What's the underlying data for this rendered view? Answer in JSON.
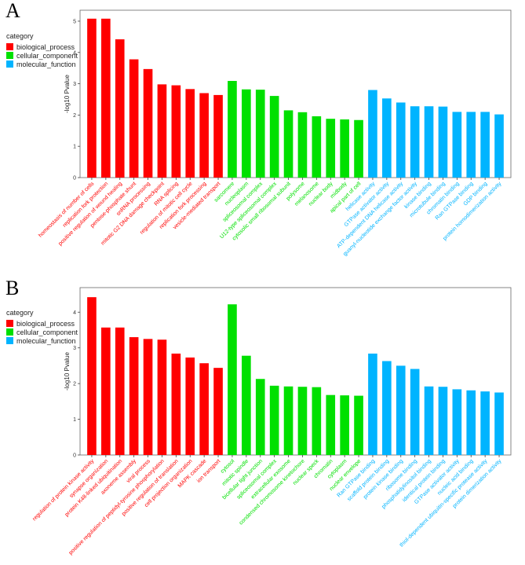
{
  "colors": {
    "biological_process": "#ff0000",
    "cellular_component": "#00e000",
    "molecular_function": "#00b4ff"
  },
  "panels": [
    {
      "letter": "A",
      "legend": {
        "title": "category",
        "items": [
          {
            "label": "biological_process",
            "key": "biological_process"
          },
          {
            "label": "cellular_component",
            "key": "cellular_component"
          },
          {
            "label": "molecular_function",
            "key": "molecular_function"
          }
        ]
      },
      "chart_data": {
        "type": "bar",
        "ylabel": "-log10 Pvalue",
        "ylim": [
          0,
          5.25
        ],
        "yticks": [
          0,
          1,
          2,
          3,
          4,
          5
        ],
        "categories": [
          {
            "label": "homeostasis of number of cells",
            "value": 5.08,
            "category": "biological_process"
          },
          {
            "label": "replication fork protection",
            "value": 5.08,
            "category": "biological_process"
          },
          {
            "label": "positive regulation of wound healing",
            "value": 4.42,
            "category": "biological_process"
          },
          {
            "label": "pentose-phosphate shunt",
            "value": 3.78,
            "category": "biological_process"
          },
          {
            "label": "snRNA processing",
            "value": 3.47,
            "category": "biological_process"
          },
          {
            "label": "mitotic G2 DNA damage checkpoint",
            "value": 2.98,
            "category": "biological_process"
          },
          {
            "label": "RNA splicing",
            "value": 2.95,
            "category": "biological_process"
          },
          {
            "label": "regulation of mitotic cell cycle",
            "value": 2.83,
            "category": "biological_process"
          },
          {
            "label": "replication fork processing",
            "value": 2.7,
            "category": "biological_process"
          },
          {
            "label": "vesicle-mediated transport",
            "value": 2.64,
            "category": "biological_process"
          },
          {
            "label": "sarcomere",
            "value": 3.09,
            "category": "cellular_component"
          },
          {
            "label": "nucleoplasm",
            "value": 2.82,
            "category": "cellular_component"
          },
          {
            "label": "spliceosomal complex",
            "value": 2.81,
            "category": "cellular_component"
          },
          {
            "label": "U12-type spliceosomal complex",
            "value": 2.61,
            "category": "cellular_component"
          },
          {
            "label": "cytosolic small ribosomal subunit",
            "value": 2.15,
            "category": "cellular_component"
          },
          {
            "label": "polysome",
            "value": 2.09,
            "category": "cellular_component"
          },
          {
            "label": "melanosome",
            "value": 1.96,
            "category": "cellular_component"
          },
          {
            "label": "nuclear body",
            "value": 1.88,
            "category": "cellular_component"
          },
          {
            "label": "midbody",
            "value": 1.86,
            "category": "cellular_component"
          },
          {
            "label": "apical part of cell",
            "value": 1.84,
            "category": "cellular_component"
          },
          {
            "label": "helicase activity",
            "value": 2.8,
            "category": "molecular_function"
          },
          {
            "label": "GTPase activator activity",
            "value": 2.53,
            "category": "molecular_function"
          },
          {
            "label": "ATP-dependent DNA helicase activity",
            "value": 2.4,
            "category": "molecular_function"
          },
          {
            "label": "guanyl-nucleotide exchange factor activity",
            "value": 2.28,
            "category": "molecular_function"
          },
          {
            "label": "kinase binding",
            "value": 2.28,
            "category": "molecular_function"
          },
          {
            "label": "microtubule binding",
            "value": 2.27,
            "category": "molecular_function"
          },
          {
            "label": "chromatin binding",
            "value": 2.1,
            "category": "molecular_function"
          },
          {
            "label": "Ran GTPase binding",
            "value": 2.1,
            "category": "molecular_function"
          },
          {
            "label": "GDP binding",
            "value": 2.1,
            "category": "molecular_function"
          },
          {
            "label": "protein homodimerization activity",
            "value": 2.02,
            "category": "molecular_function"
          }
        ]
      }
    },
    {
      "letter": "B",
      "legend": {
        "title": "category",
        "items": [
          {
            "label": "biological_process",
            "key": "biological_process"
          },
          {
            "label": "cellular_component",
            "key": "cellular_component"
          },
          {
            "label": "molecular_function",
            "key": "molecular_function"
          }
        ]
      },
      "chart_data": {
        "type": "bar",
        "ylabel": "-log10 Pvalue",
        "ylim": [
          0,
          4.6
        ],
        "yticks": [
          0,
          1,
          2,
          3,
          4
        ],
        "categories": [
          {
            "label": "regulation of protein kinase activity",
            "value": 4.42,
            "category": "biological_process"
          },
          {
            "label": "synapse organization",
            "value": 3.57,
            "category": "biological_process"
          },
          {
            "label": "protein K48-linked ubiquitination",
            "value": 3.57,
            "category": "biological_process"
          },
          {
            "label": "axoneme assembly",
            "value": 3.3,
            "category": "biological_process"
          },
          {
            "label": "viral process",
            "value": 3.25,
            "category": "biological_process"
          },
          {
            "label": "positive regulation of peptidyl-tyrosine phosphorylation",
            "value": 3.23,
            "category": "biological_process"
          },
          {
            "label": "positive regulation of translation",
            "value": 2.84,
            "category": "biological_process"
          },
          {
            "label": "cell projection organization",
            "value": 2.73,
            "category": "biological_process"
          },
          {
            "label": "MAPK cascade",
            "value": 2.57,
            "category": "biological_process"
          },
          {
            "label": "ion transport",
            "value": 2.44,
            "category": "biological_process"
          },
          {
            "label": "cytosol",
            "value": 4.22,
            "category": "cellular_component"
          },
          {
            "label": "mitotic spindle",
            "value": 2.78,
            "category": "cellular_component"
          },
          {
            "label": "bicellular tight junction",
            "value": 2.13,
            "category": "cellular_component"
          },
          {
            "label": "spliceosomal complex",
            "value": 1.94,
            "category": "cellular_component"
          },
          {
            "label": "extracellular exosome",
            "value": 1.92,
            "category": "cellular_component"
          },
          {
            "label": "condensed chromosome kinetochore",
            "value": 1.91,
            "category": "cellular_component"
          },
          {
            "label": "nuclear speck",
            "value": 1.9,
            "category": "cellular_component"
          },
          {
            "label": "chromatin",
            "value": 1.68,
            "category": "cellular_component"
          },
          {
            "label": "cytoplasm",
            "value": 1.67,
            "category": "cellular_component"
          },
          {
            "label": "nuclear envelope",
            "value": 1.66,
            "category": "cellular_component"
          },
          {
            "label": "Ran GTPase binding",
            "value": 2.84,
            "category": "molecular_function"
          },
          {
            "label": "scaffold protein binding",
            "value": 2.63,
            "category": "molecular_function"
          },
          {
            "label": "protein kinase binding",
            "value": 2.5,
            "category": "molecular_function"
          },
          {
            "label": "ribosome binding",
            "value": 2.41,
            "category": "molecular_function"
          },
          {
            "label": "phosphatidylinositol binding",
            "value": 1.92,
            "category": "molecular_function"
          },
          {
            "label": "identical protein binding",
            "value": 1.91,
            "category": "molecular_function"
          },
          {
            "label": "GTPase activator activity",
            "value": 1.84,
            "category": "molecular_function"
          },
          {
            "label": "nucleic acid binding",
            "value": 1.81,
            "category": "molecular_function"
          },
          {
            "label": "thiol-dependent ubiquitin-specific protease activity",
            "value": 1.78,
            "category": "molecular_function"
          },
          {
            "label": "protein dimerization activity",
            "value": 1.75,
            "category": "molecular_function"
          }
        ]
      }
    }
  ]
}
